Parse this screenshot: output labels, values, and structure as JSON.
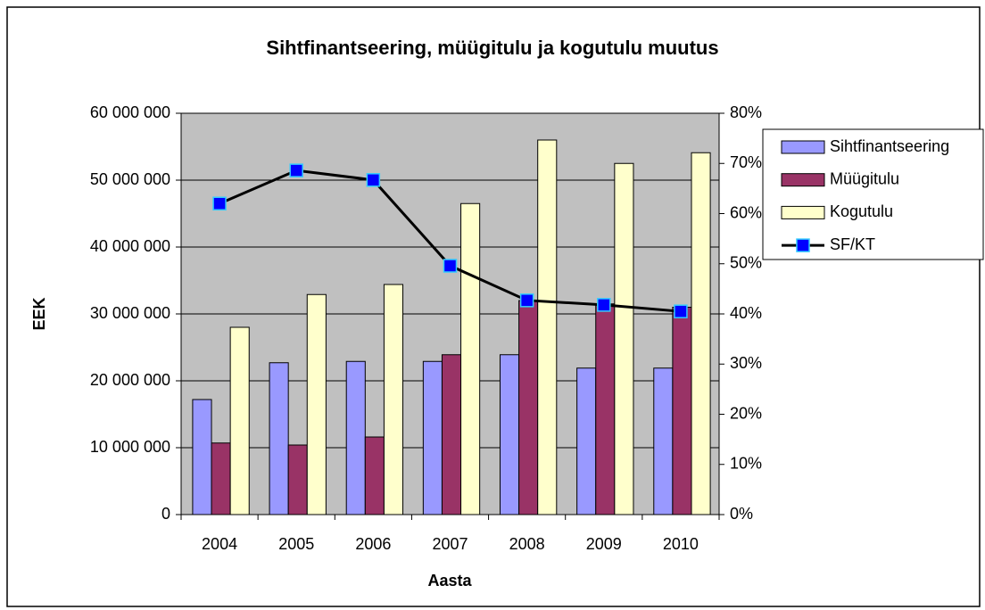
{
  "chart_data": {
    "type": "bar",
    "title": "Sihtfinantseering, müügitulu ja kogutulu muutus",
    "xlabel": "Aasta",
    "ylabel": "EEK",
    "categories": [
      "2004",
      "2005",
      "2006",
      "2007",
      "2008",
      "2009",
      "2010"
    ],
    "series": [
      {
        "name": "Sihtfinantseering",
        "type": "bar",
        "color": "#9999ff",
        "values": [
          17200000,
          22700000,
          22900000,
          22900000,
          23900000,
          21900000,
          21900000
        ]
      },
      {
        "name": "Müügitulu",
        "type": "bar",
        "color": "#993366",
        "values": [
          10700000,
          10400000,
          11600000,
          23900000,
          32000000,
          31500000,
          31000000
        ]
      },
      {
        "name": "Kogutulu",
        "type": "bar",
        "color": "#ffffcc",
        "values": [
          28000000,
          32900000,
          34400000,
          46500000,
          56000000,
          52500000,
          54100000
        ]
      },
      {
        "name": "SF/KT",
        "type": "line",
        "axis": "y2",
        "color": "#000000",
        "marker_color": "#0000ff",
        "values": [
          62.0,
          68.6,
          66.7,
          49.6,
          42.7,
          41.8,
          40.5
        ]
      }
    ],
    "ylim": [
      0,
      60000000
    ],
    "yticks": [
      0,
      {
        "value": 10000000,
        "label": "10 000 000"
      },
      {
        "value": 20000000,
        "label": "20 000 000"
      },
      {
        "value": 30000000,
        "label": "30 000 000"
      },
      {
        "value": 40000000,
        "label": "40 000 000"
      },
      {
        "value": 50000000,
        "label": "50 000 000"
      },
      {
        "value": 60000000,
        "label": "60 000 000"
      }
    ],
    "y2lim": [
      0,
      80
    ],
    "y2ticks": [
      {
        "value": 0,
        "label": "0%"
      },
      {
        "value": 10,
        "label": "10%"
      },
      {
        "value": 20,
        "label": "20%"
      },
      {
        "value": 30,
        "label": "30%"
      },
      {
        "value": 40,
        "label": "40%"
      },
      {
        "value": 50,
        "label": "50%"
      },
      {
        "value": 60,
        "label": "60%"
      },
      {
        "value": 70,
        "label": "70%"
      },
      {
        "value": 80,
        "label": "80%"
      }
    ],
    "grid": true,
    "legend": "right",
    "plot_background": "#c0c0c0"
  }
}
